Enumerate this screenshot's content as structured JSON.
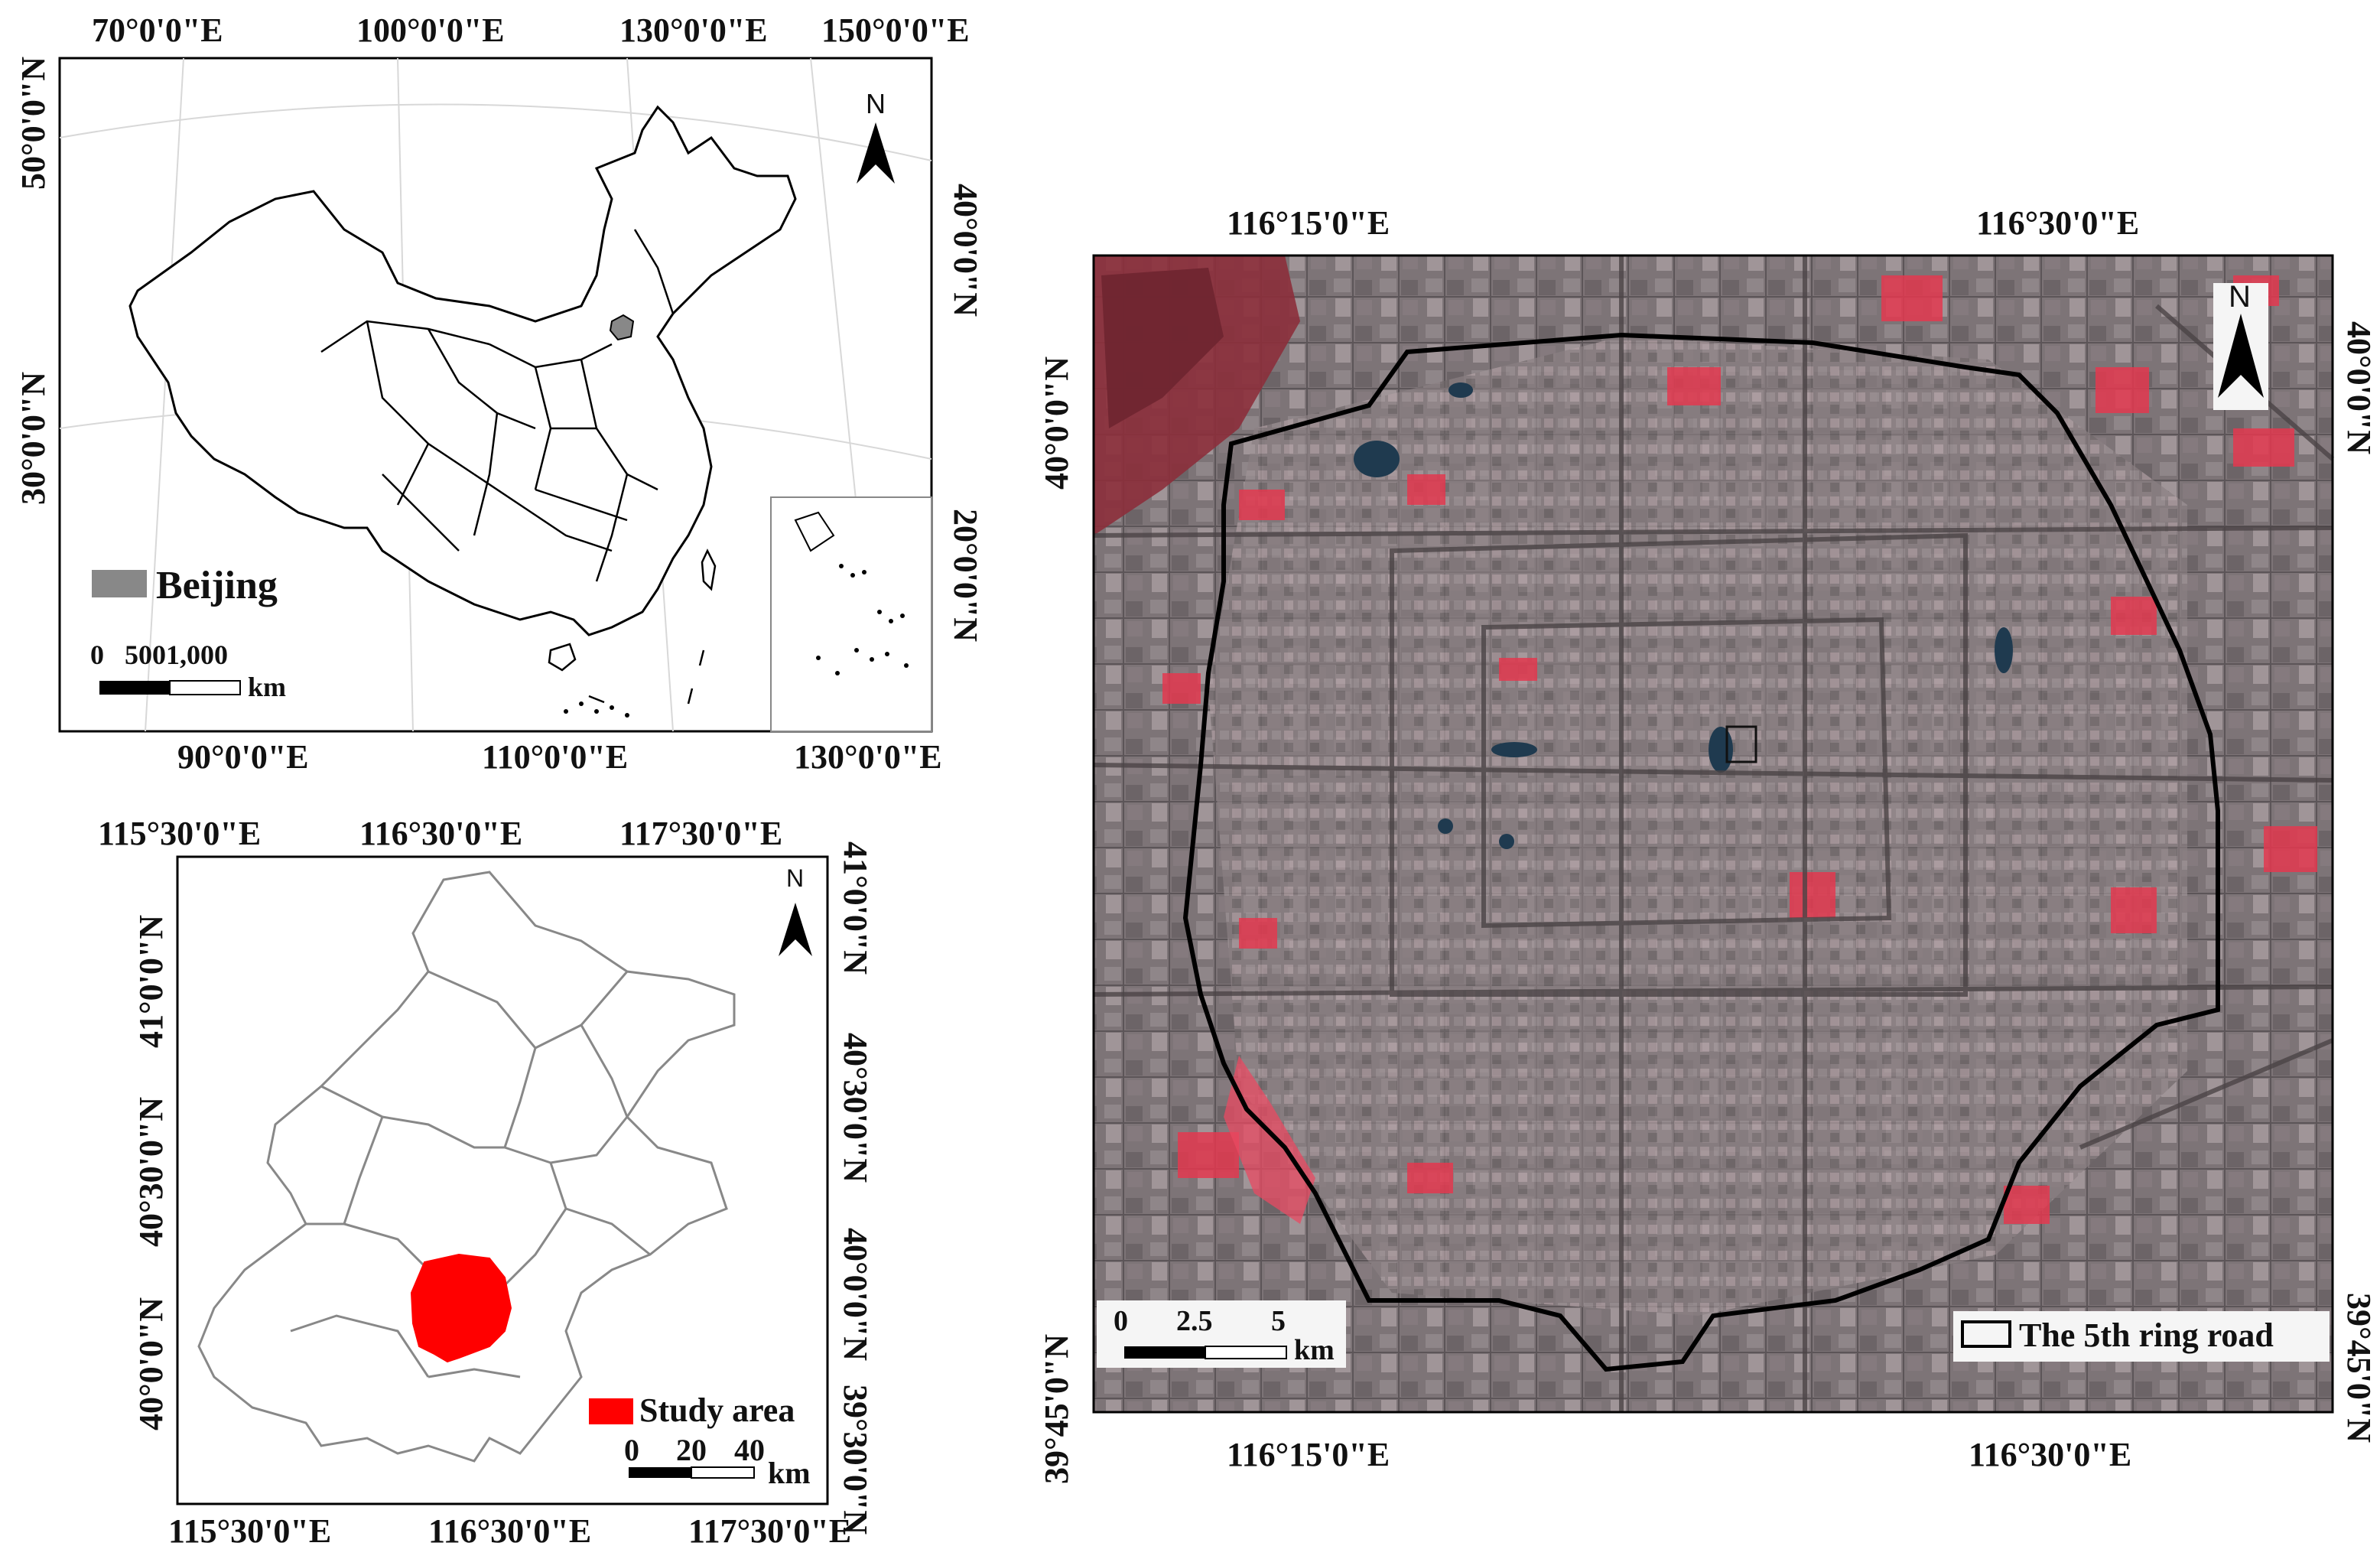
{
  "china_map": {
    "top_labels": [
      "70°0'0\"E",
      "100°0'0\"E",
      "130°0'0\"E",
      "150°0'0\"E"
    ],
    "bottom_labels": [
      "90°0'0\"E",
      "110°0'0\"E",
      "130°0'0\"E"
    ],
    "left_labels": [
      "50°0'0\"N",
      "30°0'0\"N"
    ],
    "right_labels": [
      "40°0'0\"N",
      "20°0'0\"N"
    ],
    "north_label": "N",
    "legend_label": "Beijing",
    "scale_labels": "0   5001,000",
    "scale_unit": "km",
    "legend_color": "#888888"
  },
  "beijing_map": {
    "top_labels": [
      "115°30'0\"E",
      "116°30'0\"E",
      "117°30'0\"E"
    ],
    "bottom_labels": [
      "115°30'0\"E",
      "116°30'0\"E",
      "117°30'0\"E"
    ],
    "left_labels": [
      "41°0'0\"N",
      "40°30'0\"N",
      "40°0'0\"N"
    ],
    "right_labels": [
      "41°0'0\"N",
      "40°30'0\"N",
      "40°0'0\"N",
      "39°30'0\"N"
    ],
    "north_label": "N",
    "legend_label": "Study area",
    "scale_labels": [
      "0",
      "20",
      "40"
    ],
    "scale_unit": "km",
    "study_color": "#ff0000"
  },
  "satellite_map": {
    "top_labels": [
      "116°15'0\"E",
      "116°30'0\"E"
    ],
    "bottom_labels": [
      "116°15'0\"E",
      "116°30'0\"E"
    ],
    "left_labels": [
      "40°0'0\"N",
      "39°45'0\"N"
    ],
    "right_labels": [
      "40°0'0\"N",
      "39°45'0\"N"
    ],
    "north_label": "N",
    "scale_labels": [
      "0",
      "2.5",
      "5"
    ],
    "scale_unit": "km",
    "legend_label": "The 5th ring road"
  }
}
